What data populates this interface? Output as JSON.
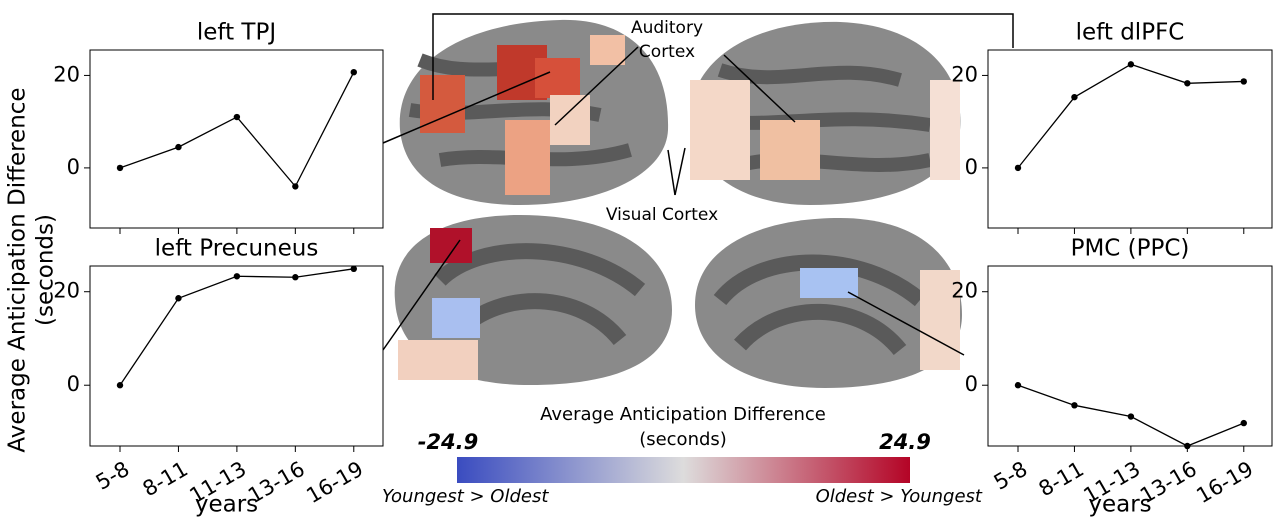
{
  "chart_data": [
    {
      "type": "line",
      "title": "left TPJ",
      "values": [
        0,
        4.5,
        11,
        -4,
        20.7
      ],
      "ylim": [
        -13,
        25.5
      ],
      "yticks": [
        0,
        20
      ],
      "color": "#000000"
    },
    {
      "type": "line",
      "title": "left Precuneus",
      "categories": [
        "5-8",
        "8-11",
        "11-13",
        "13-16",
        "16-19"
      ],
      "xlabel": "years",
      "values": [
        0,
        18.6,
        23.3,
        23.1,
        24.9
      ],
      "ylim": [
        -13,
        25.5
      ],
      "yticks": [
        0,
        20
      ],
      "color": "#000000"
    },
    {
      "type": "line",
      "title": "left dlPFC",
      "values": [
        0,
        15.3,
        22.4,
        18.3,
        18.7
      ],
      "ylim": [
        -13,
        25.5
      ],
      "yticks": [
        0,
        20
      ],
      "color": "#000000"
    },
    {
      "type": "line",
      "title": "PMC (PPC)",
      "categories": [
        "5-8",
        "8-11",
        "11-13",
        "13-16",
        "16-19"
      ],
      "xlabel": "years",
      "values": [
        0,
        -4.3,
        -6.7,
        -13,
        -8.1
      ],
      "ylim": [
        -13,
        25.5
      ],
      "yticks": [
        0,
        20
      ],
      "color": "#000000"
    }
  ],
  "ylabel": [
    "Average Anticipation Difference",
    "(seconds)"
  ],
  "annotations": {
    "auditory": [
      "Auditory",
      "Cortex"
    ],
    "visual": "Visual Cortex"
  },
  "colorbar": {
    "title": [
      "Average Anticipation Difference",
      "(seconds)"
    ],
    "min": -24.9,
    "max": 24.9,
    "left_label": "Youngest > Oldest",
    "right_label": "Oldest > Youngest",
    "colors": [
      "#3a4cc0",
      "#dddcdc",
      "#b40426"
    ]
  }
}
